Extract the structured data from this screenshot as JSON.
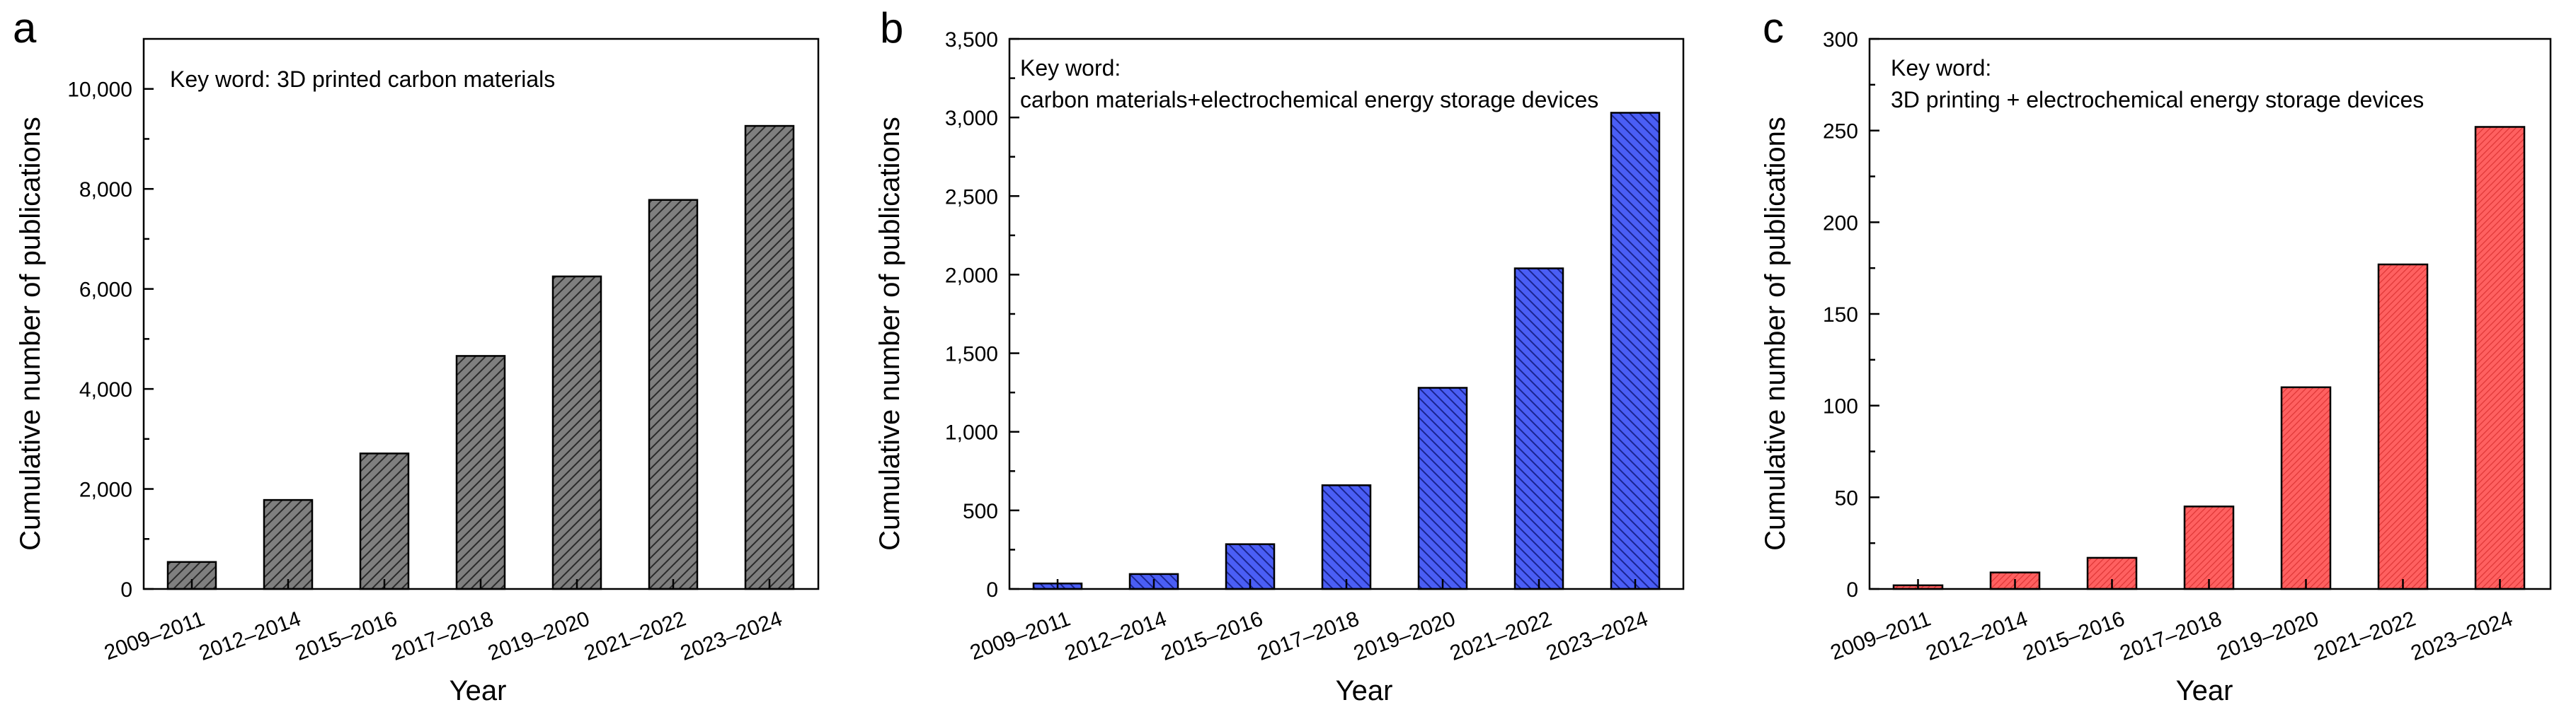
{
  "chart_data": [
    {
      "type": "bar",
      "panel_label": "a",
      "annotation": [
        "Key word: 3D printed carbon materials"
      ],
      "categories": [
        "2009–2011",
        "2012–2014",
        "2015–2016",
        "2017–2018",
        "2019–2020",
        "2021–2022",
        "2023–2024"
      ],
      "values": [
        540,
        1780,
        2710,
        4660,
        6250,
        7780,
        9260
      ],
      "xlabel": "Year",
      "ylabel": "Cumulative number of publications",
      "ylim": [
        0,
        11000
      ],
      "yticks": [
        0,
        2000,
        4000,
        6000,
        8000,
        10000
      ],
      "ytick_labels": [
        "0",
        "2,000",
        "4,000",
        "6,000",
        "8,000",
        "10,000"
      ],
      "minor_tick_step": 1000,
      "bar_color": "#7f7f7f",
      "hatch": "forward-diagonal",
      "grid": false,
      "legend": "none"
    },
    {
      "type": "bar",
      "panel_label": "b",
      "annotation": [
        "Key word:",
        "carbon materials+electrochemical energy storage devices"
      ],
      "categories": [
        "2009–2011",
        "2012–2014",
        "2015–2016",
        "2017–2018",
        "2019–2020",
        "2021–2022",
        "2023–2024"
      ],
      "values": [
        35,
        95,
        285,
        660,
        1280,
        2040,
        3030
      ],
      "xlabel": "Year",
      "ylabel": "Cumulative number of publications",
      "ylim": [
        0,
        3500
      ],
      "yticks": [
        0,
        500,
        1000,
        1500,
        2000,
        2500,
        3000,
        3500
      ],
      "ytick_labels": [
        "0",
        "500",
        "1,000",
        "1,500",
        "2,000",
        "2,500",
        "3,000",
        "3,500"
      ],
      "minor_tick_step": 250,
      "bar_color": "#4a5ef5",
      "hatch": "back-diagonal",
      "grid": false,
      "legend": "none"
    },
    {
      "type": "bar",
      "panel_label": "c",
      "annotation": [
        "Key word:",
        "3D printing + electrochemical energy storage devices"
      ],
      "categories": [
        "2009–2011",
        "2012–2014",
        "2015–2016",
        "2017–2018",
        "2019–2020",
        "2021–2022",
        "2023–2024"
      ],
      "values": [
        2,
        9,
        17,
        45,
        110,
        177,
        252
      ],
      "xlabel": "Year",
      "ylabel": "Cumulative number of publications",
      "ylim": [
        0,
        300
      ],
      "yticks": [
        0,
        50,
        100,
        150,
        200,
        250,
        300
      ],
      "ytick_labels": [
        "0",
        "50",
        "100",
        "150",
        "200",
        "250",
        "300"
      ],
      "minor_tick_step": 25,
      "bar_color": "#ff6060",
      "hatch": "fine-forward-diagonal",
      "grid": false,
      "legend": "none"
    }
  ]
}
